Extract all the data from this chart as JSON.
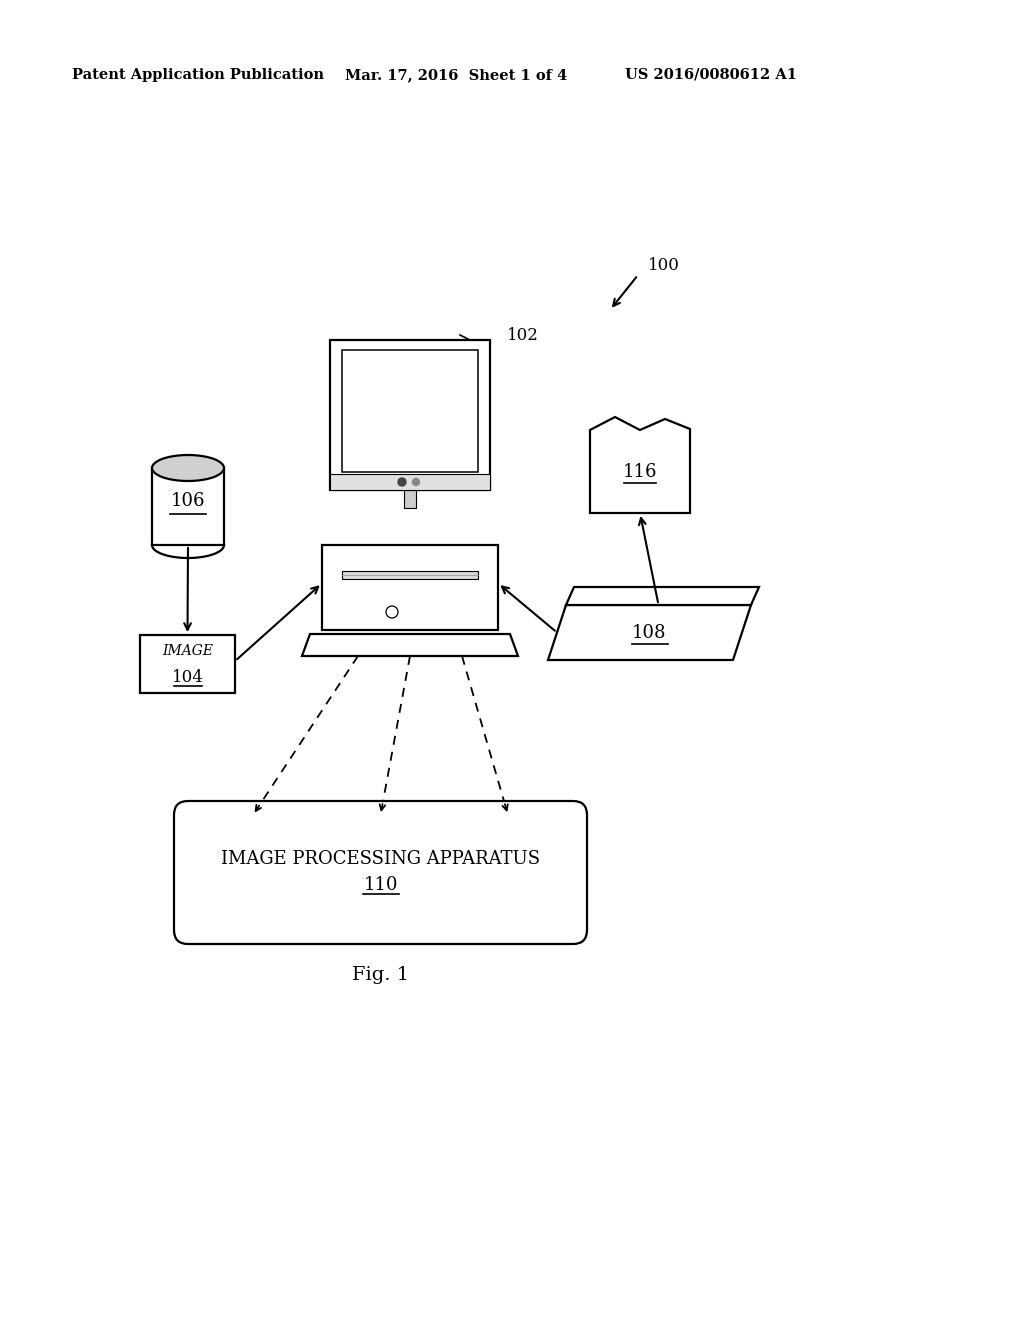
{
  "bg_color": "#ffffff",
  "header_left": "Patent Application Publication",
  "header_mid": "Mar. 17, 2016  Sheet 1 of 4",
  "header_right": "US 2016/0080612 A1",
  "fig_label": "Fig. 1",
  "label_100": "100",
  "label_102": "102",
  "label_104": "104",
  "label_106": "106",
  "label_108": "108",
  "label_110": "110",
  "label_116": "116",
  "text_image": "IMAGE",
  "text_110_line1": "IMAGE PROCESSING APPARATUS",
  "text_110_line2": "110",
  "lw_main": 1.6,
  "lw_thin": 1.1
}
